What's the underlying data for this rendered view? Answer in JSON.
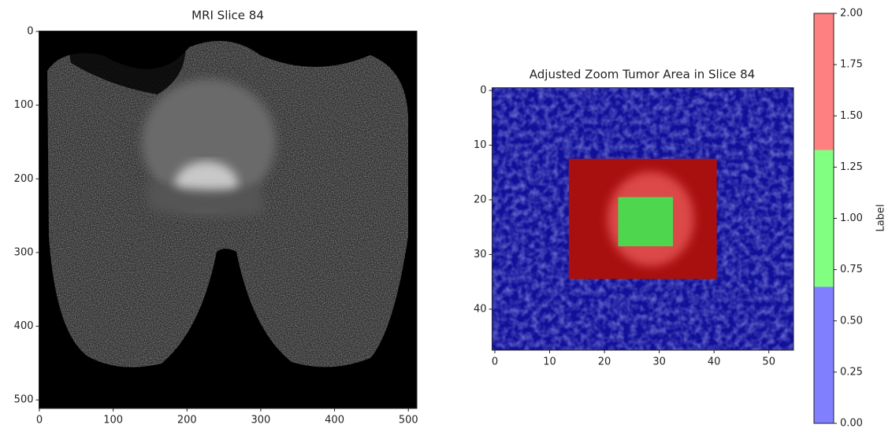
{
  "chart_data": [
    {
      "type": "image",
      "title": "MRI Slice 84",
      "xlim": [
        -0.5,
        511.5
      ],
      "ylim": [
        511.5,
        -0.5
      ],
      "xticks": [
        0,
        100,
        200,
        300,
        400,
        500
      ],
      "yticks": [
        0,
        100,
        200,
        300,
        400,
        500
      ]
    },
    {
      "type": "overlay",
      "title": "Adjusted Zoom Tumor Area in Slice 84",
      "xlim": [
        -0.5,
        54.5
      ],
      "ylim": [
        47.5,
        -0.5
      ],
      "xticks": [
        0,
        10,
        20,
        30,
        40,
        50
      ],
      "yticks": [
        0,
        10,
        20,
        30,
        40
      ],
      "background_color": "#101099",
      "boxes": [
        {
          "x": [
            13.5,
            40.5
          ],
          "y": [
            12.5,
            34.5
          ],
          "value": 2,
          "color": "#a80f0f"
        },
        {
          "x": [
            22.5,
            32.5
          ],
          "y": [
            19.5,
            28.5
          ],
          "value": 1,
          "color": "#4fd64f"
        }
      ]
    },
    {
      "type": "colorbar",
      "label": "Label",
      "ylim": [
        0,
        2
      ],
      "colors": [
        "#8080ff",
        "#80ff80",
        "#ff8080"
      ],
      "yticks": [
        {
          "value": 0,
          "label": "0.00"
        },
        {
          "value": 0.25,
          "label": "0.25"
        },
        {
          "value": 0.5,
          "label": "0.50"
        },
        {
          "value": 0.75,
          "label": "0.75"
        },
        {
          "value": 1,
          "label": "1.00"
        },
        {
          "value": 1.25,
          "label": "1.25"
        },
        {
          "value": 1.5,
          "label": "1.50"
        },
        {
          "value": 1.75,
          "label": "1.75"
        },
        {
          "value": 2,
          "label": "2.00"
        }
      ]
    }
  ]
}
